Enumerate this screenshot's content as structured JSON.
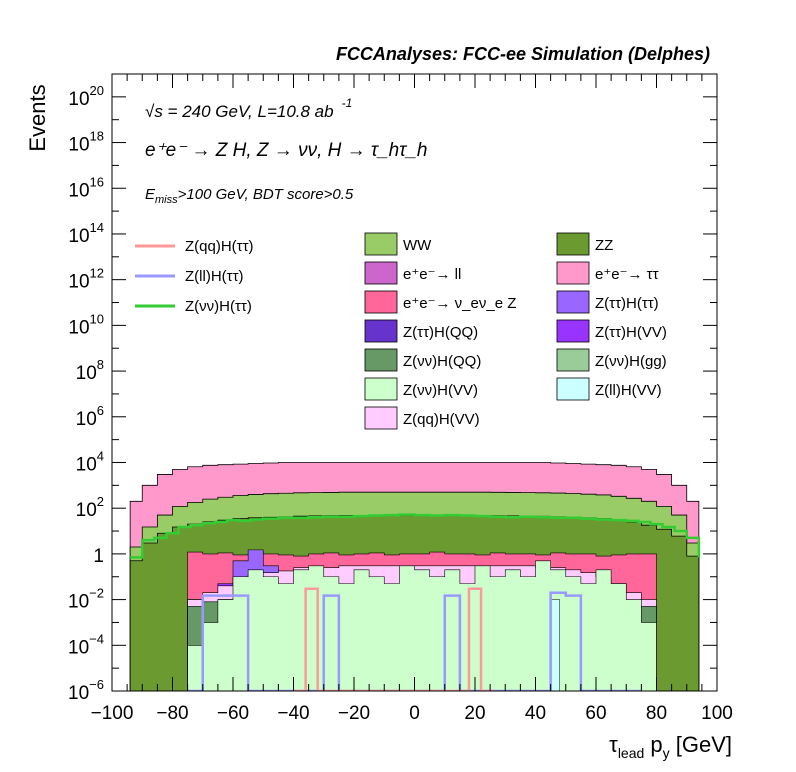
{
  "header": "FCCAnalyses: FCC-ee Simulation (Delphes)",
  "annotations": {
    "line1": "√s = 240 GeV, L=10.8 ab",
    "line1_sup": "-1",
    "line2": "e⁺e⁻ → Z H, Z → νν, H → τ_hτ_h",
    "line3_pre": "E",
    "line3_sub": "miss",
    "line3_post": ">100 GeV, BDT score>0.5"
  },
  "chart_data": {
    "type": "area",
    "xlabel": "τ_lead p_y [GeV]",
    "ylabel": "Events",
    "xlim": [
      -100,
      100
    ],
    "ylim": [
      1e-06,
      1e+21
    ],
    "yscale": "log",
    "grid": false,
    "x_ticks": [
      "−100",
      "−80",
      "−60",
      "−40",
      "−20",
      "0",
      "20",
      "40",
      "60",
      "80",
      "100"
    ],
    "y_ticks": [
      {
        "v": 1e-06,
        "base": "10",
        "exp": "−6"
      },
      {
        "v": 0.0001,
        "base": "10",
        "exp": "−4"
      },
      {
        "v": 0.01,
        "base": "10",
        "exp": "−2"
      },
      {
        "v": 1,
        "base": "1",
        "exp": ""
      },
      {
        "v": 100.0,
        "base": "10",
        "exp": "2"
      },
      {
        "v": 10000.0,
        "base": "10",
        "exp": "4"
      },
      {
        "v": 1000000.0,
        "base": "10",
        "exp": "6"
      },
      {
        "v": 100000000.0,
        "base": "10",
        "exp": "8"
      },
      {
        "v": 10000000000.0,
        "base": "10",
        "exp": "10"
      },
      {
        "v": 1000000000000.0,
        "base": "10",
        "exp": "12"
      },
      {
        "v": 100000000000000.0,
        "base": "10",
        "exp": "14"
      },
      {
        "v": 1e+16,
        "base": "10",
        "exp": "16"
      },
      {
        "v": 1e+18,
        "base": "10",
        "exp": "18"
      },
      {
        "v": 1e+20,
        "base": "10",
        "exp": "20"
      }
    ],
    "stack_edges": [
      -94,
      -90,
      -85,
      -80,
      -75,
      -70,
      -65,
      -60,
      -55,
      -50,
      -45,
      -40,
      -35,
      -30,
      -25,
      -20,
      -15,
      -10,
      -5,
      0,
      5,
      10,
      15,
      20,
      25,
      30,
      35,
      40,
      45,
      50,
      55,
      60,
      65,
      70,
      75,
      80,
      85,
      90,
      94
    ],
    "stack_bands": [
      {
        "name": "ZZ",
        "color": "#6b9a31",
        "top": [
          0.5,
          3,
          8,
          15,
          20,
          25,
          30,
          35,
          38,
          40,
          42,
          45,
          46,
          47,
          48,
          48,
          48,
          48,
          48,
          48,
          48,
          48,
          48,
          48,
          47,
          46,
          45,
          44,
          42,
          40,
          38,
          35,
          30,
          25,
          18,
          12,
          6,
          0.8
        ]
      },
      {
        "name": "WW",
        "color": "#99cc66",
        "top": [
          2,
          15,
          50,
          120,
          180,
          250,
          300,
          360,
          400,
          430,
          450,
          470,
          480,
          490,
          500,
          500,
          500,
          500,
          500,
          500,
          500,
          500,
          500,
          500,
          495,
          490,
          480,
          470,
          460,
          440,
          410,
          380,
          330,
          270,
          200,
          120,
          50,
          3
        ]
      },
      {
        "name": "e⁺e⁻ → ττ",
        "color": "#ff99cc",
        "top": [
          200,
          1000,
          3000,
          5000,
          6500,
          7500,
          8000,
          8500,
          9000,
          9500,
          10000,
          10000,
          10000,
          10000,
          10000,
          10000,
          10000,
          10000,
          10000,
          10000,
          10000,
          10000,
          10000,
          10000,
          10000,
          10000,
          10000,
          10000,
          9500,
          9000,
          8500,
          8000,
          7500,
          6500,
          5000,
          3000,
          1000,
          200
        ]
      }
    ],
    "hist_edges": [
      -75,
      -70,
      -65,
      -60,
      -55,
      -50,
      -45,
      -40,
      -35,
      -30,
      -25,
      -20,
      -15,
      -10,
      -5,
      0,
      5,
      10,
      15,
      20,
      25,
      30,
      35,
      40,
      45,
      50,
      55,
      60,
      65,
      70,
      75,
      80
    ],
    "hists": [
      {
        "name": "e⁺e⁻ → ν_eν_e Z",
        "color": "#ff6699",
        "top": [
          1.2,
          1.0,
          1.1,
          0.9,
          1.0,
          1.0,
          0.9,
          0.8,
          1.0,
          1.1,
          0.9,
          1.0,
          1.1,
          0.9,
          1.0,
          1.0,
          1.2,
          1.0,
          1.0,
          0.9,
          1.1,
          1.0,
          1.0,
          0.9,
          1.1,
          1.0,
          1.0,
          0.8,
          0.9,
          1.0,
          1.0
        ]
      },
      {
        "name": "Z(ττ)H(ττ)",
        "color": "#9966ff",
        "top": [
          0.002,
          0.01,
          0.03,
          0.5,
          1.5,
          0.3,
          0.05,
          0.1,
          0.05,
          0.02,
          0.2,
          0.05,
          0.02,
          0.1,
          0.05,
          0.02,
          0.05,
          0.1,
          0.05,
          0.02,
          0.05,
          0.1,
          0.02,
          0.05,
          0.02,
          0.1,
          0.02,
          0.01,
          0.05,
          0.01,
          0.002
        ]
      },
      {
        "name": "Z(ττ)H(VV)",
        "color": "#9933ff",
        "top": [
          0.01,
          0.015,
          0.05,
          0.08,
          0.1,
          0.12,
          0.1,
          0.15,
          0.15,
          0.12,
          0.15,
          0.2,
          0.2,
          0.15,
          0.2,
          0.2,
          0.15,
          0.2,
          0.15,
          0.15,
          0.12,
          0.15,
          0.15,
          0.2,
          0.15,
          0.1,
          0.08,
          0.05,
          0.02,
          0.01,
          0.005
        ]
      },
      {
        "name": "Z(qq)H(VV)",
        "color": "#ffccff",
        "top": [
          0.01,
          0.02,
          0.04,
          0.08,
          0.12,
          0.15,
          0.18,
          0.25,
          0.25,
          0.25,
          0.3,
          0.3,
          0.3,
          0.3,
          0.3,
          0.3,
          0.3,
          0.3,
          0.3,
          0.3,
          0.3,
          0.3,
          0.3,
          0.25,
          0.25,
          0.2,
          0.15,
          0.1,
          0.05,
          0.02,
          0.01
        ]
      },
      {
        "name": "Z(νν)H(QQ)",
        "color": "#669966",
        "top": [
          0.005,
          0.008,
          0.01,
          0.01,
          0.01,
          0.005,
          0.01,
          0.01,
          0.005,
          0.01,
          0.01,
          0.005,
          0.01,
          0.01,
          0.005,
          0.01,
          0.01,
          0.005,
          0.01,
          0.01,
          0.005,
          0.01,
          0.01,
          0.005,
          0.01,
          0.01,
          0.005,
          0.01,
          0.01,
          0.005,
          0.005
        ]
      },
      {
        "name": "Z(νν)H(VV)",
        "color": "#ccffcc",
        "top": [
          0.0001,
          0.001,
          0.01,
          0.1,
          0.2,
          0.1,
          0.05,
          0.2,
          0.3,
          0.1,
          0.05,
          0.2,
          0.1,
          0.05,
          0.3,
          0.2,
          0.1,
          0.2,
          0.05,
          0.3,
          0.1,
          0.2,
          0.1,
          0.5,
          0.2,
          0.1,
          0.05,
          0.2,
          0.05,
          0.01,
          0.001
        ]
      }
    ],
    "line_series": [
      {
        "name": "Z(νν)H(ττ)",
        "color": "#33cc33",
        "edges": [
          -94,
          -90,
          -86,
          -82,
          -78,
          -74,
          -70,
          -66,
          -62,
          -58,
          -54,
          -50,
          -45,
          -40,
          -35,
          -30,
          -25,
          -20,
          -15,
          -10,
          -5,
          0,
          5,
          10,
          15,
          20,
          25,
          30,
          35,
          40,
          45,
          50,
          55,
          60,
          65,
          70,
          74,
          78,
          82,
          86,
          90,
          94
        ],
        "values": [
          0.7,
          4,
          5,
          8,
          15,
          18,
          22,
          25,
          30,
          28,
          32,
          35,
          38,
          38,
          40,
          42,
          42,
          45,
          48,
          50,
          52,
          50,
          48,
          50,
          48,
          45,
          42,
          40,
          42,
          40,
          38,
          38,
          35,
          32,
          30,
          28,
          25,
          20,
          15,
          10,
          5,
          0.7
        ]
      },
      {
        "name": "Z(ll)H(ττ)",
        "color": "#9999ff",
        "edges": [
          -75,
          -70,
          -60,
          -55,
          -50,
          -45,
          -40,
          -35,
          -30,
          -25,
          -20,
          -15,
          -10,
          -5,
          0,
          5,
          10,
          15,
          20,
          25,
          30,
          35,
          40,
          45,
          50,
          55,
          60,
          65,
          70,
          75
        ],
        "values": [
          1e-07,
          0.015,
          0.015,
          1e-07,
          1e-07,
          1e-07,
          1e-07,
          1e-07,
          0.015,
          1e-07,
          1e-07,
          1e-07,
          1e-07,
          1e-07,
          1e-07,
          1e-07,
          0.015,
          1e-07,
          1e-07,
          1e-07,
          1e-07,
          1e-07,
          1e-07,
          0.02,
          0.015,
          1e-07,
          1e-07,
          1e-07,
          1e-07
        ]
      },
      {
        "name": "Z(qq)H(ττ)",
        "color": "#ff9999",
        "edges": [
          -40,
          -36,
          -32,
          18,
          22,
          26
        ],
        "values": [
          1e-07,
          0.03,
          1e-07,
          0.03,
          1e-07
        ]
      }
    ],
    "extra_legend": [
      {
        "name": "Z(ττ)H(QQ)",
        "color": "#6633cc"
      },
      {
        "name": "Z(νν)H(gg)",
        "color": "#99cc99"
      },
      {
        "name": "Z(ll)H(VV)",
        "color": "#ccffff"
      },
      {
        "name": "e⁺e⁻ → ll",
        "color": "#cc66cc"
      }
    ],
    "cyan_bin": {
      "name": "Z(ll)H(VV)",
      "x0": 45,
      "x1": 48,
      "top": 0.01,
      "color": "#ccffff"
    },
    "legend_lines": [
      "Z(qq)H(ττ)",
      "Z(ll)H(ττ)",
      "Z(νν)H(ττ)"
    ],
    "legend_boxes": [
      [
        "WW",
        "ZZ"
      ],
      [
        "e⁺e⁻→ ll",
        "e⁺e⁻→ ττ"
      ],
      [
        "e⁺e⁻→ ν_eν_e Z",
        "Z(ττ)H(ττ)"
      ],
      [
        "Z(ττ)H(QQ)",
        "Z(ττ)H(VV)"
      ],
      [
        "Z(νν)H(QQ)",
        "Z(νν)H(gg)"
      ],
      [
        "Z(νν)H(VV)",
        "Z(ll)H(VV)"
      ],
      [
        "Z(qq)H(VV)",
        ""
      ]
    ],
    "legend_box_colors": [
      [
        "#99cc66",
        "#6b9a31"
      ],
      [
        "#cc66cc",
        "#ff99cc"
      ],
      [
        "#ff6699",
        "#9966ff"
      ],
      [
        "#6633cc",
        "#9933ff"
      ],
      [
        "#669966",
        "#99cc99"
      ],
      [
        "#ccffcc",
        "#ccffff"
      ],
      [
        "#ffccff",
        ""
      ]
    ],
    "legend_line_colors": [
      "#ff9999",
      "#9999ff",
      "#33cc33"
    ]
  }
}
